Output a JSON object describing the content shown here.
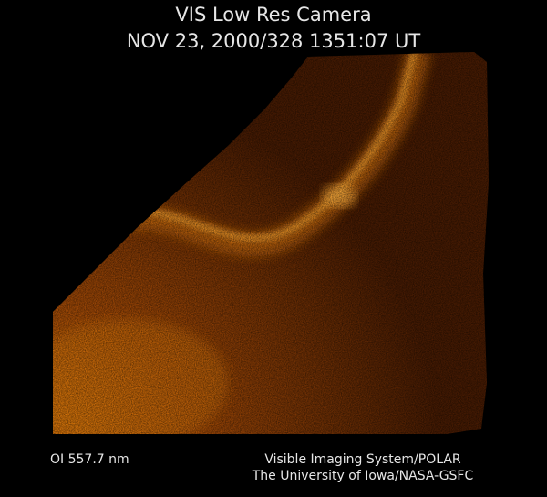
{
  "header": {
    "title": "VIS Low Res Camera",
    "timestamp": "NOV 23, 2000/328 1351:07 UT"
  },
  "footer": {
    "filter": "OI 557.7 nm",
    "credit_lines": [
      "Visible Imaging System/POLAR",
      "The University of Iowa/NASA-GSFC"
    ]
  }
}
